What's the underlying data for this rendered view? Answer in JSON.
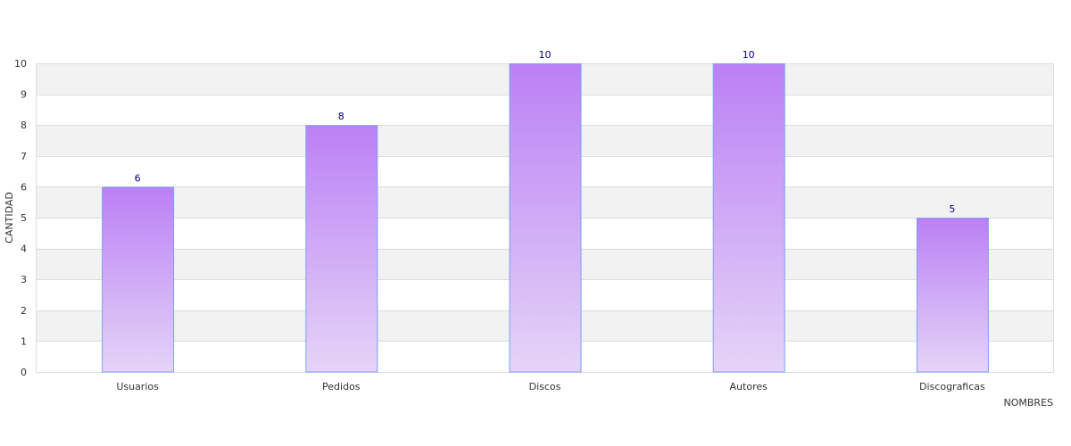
{
  "chart_data": {
    "type": "bar",
    "title": "",
    "xlabel": "NOMBRES",
    "ylabel": "CANTIDAD",
    "categories": [
      "Usuarios",
      "Pedidos",
      "Discos",
      "Autores",
      "Discograficas"
    ],
    "values": [
      6,
      8,
      10,
      10,
      5
    ],
    "ylim": [
      0,
      10
    ],
    "yticks": [
      0,
      1,
      2,
      3,
      4,
      5,
      6,
      7,
      8,
      9,
      10
    ],
    "grid": true,
    "data_labels": true,
    "colors": {
      "bar_top": "#bb80f5",
      "bar_bottom": "#e5d4f7",
      "bar_border": "#7f9ff5",
      "band_alt": "#f2f2f2",
      "grid": "#dddddd",
      "data_label": "#000080",
      "text": "#333333"
    }
  }
}
